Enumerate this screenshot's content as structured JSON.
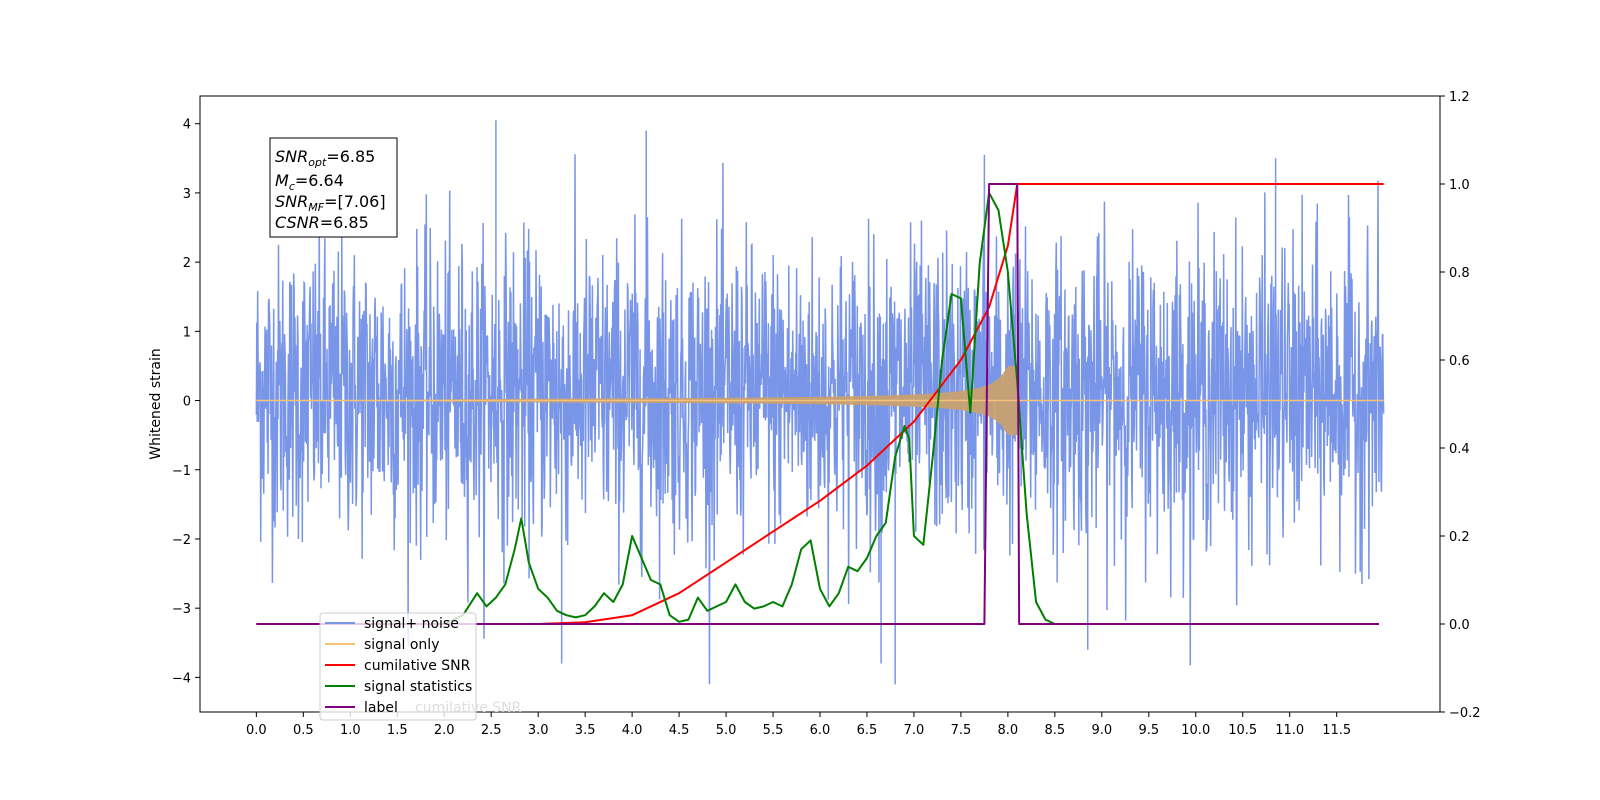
{
  "chart_data": {
    "type": "line",
    "ylabel": "Whitened strain",
    "xlim": [
      -0.6,
      12.6
    ],
    "ylim_left": [
      -4.5,
      4.4
    ],
    "ylim_right": [
      -0.2,
      1.2
    ],
    "x_ticks": [
      "0.0",
      "0.5",
      "1.0",
      "1.5",
      "2.0",
      "2.5",
      "3.0",
      "3.5",
      "4.0",
      "4.5",
      "5.0",
      "5.5",
      "6.0",
      "6.5",
      "7.0",
      "7.5",
      "8.0",
      "8.5",
      "9.0",
      "9.5",
      "10.0",
      "10.5",
      "11.0",
      "11.5"
    ],
    "y_ticks_left": [
      "4",
      "3",
      "2",
      "1",
      "0",
      "−1",
      "−2",
      "−3",
      "−4"
    ],
    "y_ticks_right": [
      "1.2",
      "1.0",
      "0.8",
      "0.6",
      "0.4",
      "0.2",
      "0.0",
      "−0.2"
    ],
    "stats_box": [
      {
        "base": "SNR",
        "sub": "opt",
        "value": "=6.85"
      },
      {
        "base": "M",
        "sub": "c",
        "value": "=6.64"
      },
      {
        "base": "SNR",
        "sub": "MF",
        "value": "=[7.06]"
      },
      {
        "base": "CSNR",
        "sub": "",
        "value": "=6.85"
      }
    ],
    "legend": [
      {
        "label": "signal+ noise",
        "color": "#7895e8"
      },
      {
        "label": "signal only",
        "color": "#f5c27a"
      },
      {
        "label": "cumilative SNR",
        "color": "#ff0000"
      },
      {
        "label": "signal statistics",
        "color": "#007f00"
      },
      {
        "label": "label",
        "color": "#7f007f"
      }
    ],
    "legend_hidden_text": "cumilative SNR",
    "series": [
      {
        "name": "signal+ noise",
        "axis": "left",
        "kind": "noise",
        "x_range": [
          0.0,
          12.0
        ],
        "mean": 0.0,
        "typical_band": [
          -1.6,
          2.0
        ],
        "extremes": [
          -4.1,
          4.05
        ]
      },
      {
        "name": "signal only",
        "axis": "left",
        "kind": "chirp",
        "x_range": [
          0.0,
          8.1
        ],
        "max_amplitude": 0.5
      },
      {
        "name": "cumilative SNR",
        "axis": "right",
        "x": [
          0,
          3.0,
          3.5,
          4.0,
          4.5,
          5.0,
          5.5,
          6.0,
          6.5,
          7.0,
          7.5,
          7.8,
          8.0,
          8.1,
          12.0
        ],
        "y": [
          0,
          0,
          0.004,
          0.02,
          0.07,
          0.14,
          0.21,
          0.28,
          0.36,
          0.46,
          0.6,
          0.72,
          0.86,
          1.0,
          1.0
        ]
      },
      {
        "name": "signal statistics",
        "axis": "right",
        "x": [
          2.0,
          2.2,
          2.35,
          2.45,
          2.55,
          2.65,
          2.75,
          2.82,
          2.9,
          3.0,
          3.1,
          3.2,
          3.3,
          3.4,
          3.5,
          3.6,
          3.7,
          3.8,
          3.9,
          4.0,
          4.1,
          4.2,
          4.3,
          4.4,
          4.5,
          4.6,
          4.7,
          4.8,
          4.9,
          5.0,
          5.1,
          5.2,
          5.3,
          5.4,
          5.5,
          5.6,
          5.7,
          5.8,
          5.9,
          6.0,
          6.1,
          6.2,
          6.3,
          6.4,
          6.5,
          6.6,
          6.7,
          6.8,
          6.9,
          6.95,
          7.0,
          7.1,
          7.2,
          7.3,
          7.4,
          7.5,
          7.6,
          7.7,
          7.8,
          7.9,
          8.0,
          8.1,
          8.2,
          8.3,
          8.4,
          8.5,
          8.7,
          9.0,
          9.5
        ],
        "y": [
          0.0,
          0.02,
          0.07,
          0.04,
          0.06,
          0.09,
          0.17,
          0.24,
          0.14,
          0.08,
          0.06,
          0.03,
          0.02,
          0.015,
          0.02,
          0.04,
          0.07,
          0.05,
          0.09,
          0.2,
          0.15,
          0.1,
          0.09,
          0.02,
          0.005,
          0.01,
          0.06,
          0.03,
          0.04,
          0.05,
          0.09,
          0.05,
          0.035,
          0.04,
          0.05,
          0.04,
          0.09,
          0.17,
          0.19,
          0.08,
          0.04,
          0.07,
          0.13,
          0.12,
          0.15,
          0.2,
          0.23,
          0.38,
          0.45,
          0.42,
          0.2,
          0.18,
          0.38,
          0.6,
          0.75,
          0.74,
          0.48,
          0.82,
          0.98,
          0.94,
          0.8,
          0.55,
          0.25,
          0.05,
          0.01,
          0.0,
          0.0,
          0.0,
          0.0
        ]
      },
      {
        "name": "label",
        "axis": "right",
        "x": [
          0,
          7.75,
          7.8,
          8.1,
          8.12,
          11.95
        ],
        "y": [
          0,
          0,
          1.0,
          1.0,
          0,
          0
        ]
      }
    ]
  }
}
